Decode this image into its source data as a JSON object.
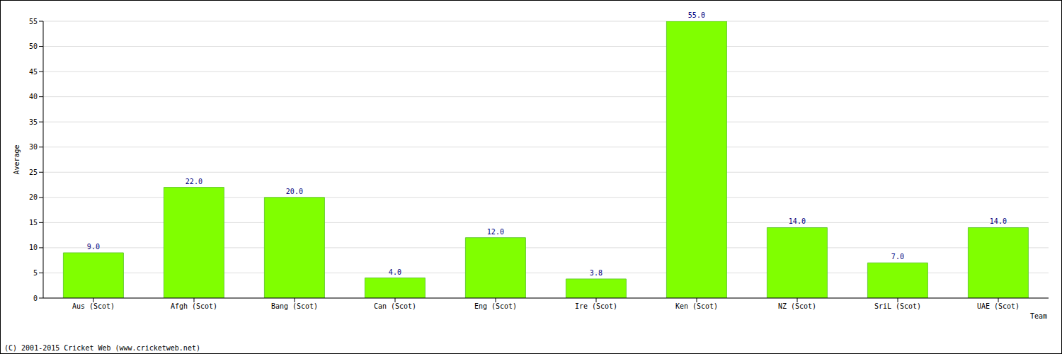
{
  "chart_data": {
    "type": "bar",
    "categories": [
      "Aus (Scot)",
      "Afgh (Scot)",
      "Bang (Scot)",
      "Can (Scot)",
      "Eng (Scot)",
      "Ire (Scot)",
      "Ken (Scot)",
      "NZ (Scot)",
      "SriL (Scot)",
      "UAE (Scot)"
    ],
    "values": [
      9,
      22,
      20,
      4,
      12,
      3.8,
      55,
      14,
      7,
      14
    ],
    "value_labels": [
      "9.0",
      "22.0",
      "20.0",
      "4.0",
      "12.0",
      "3.8",
      "55.0",
      "14.0",
      "7.0",
      "14.0"
    ],
    "data_labels": true,
    "color": "#80ff00",
    "x_label": "Team",
    "y_label": "Average",
    "ylim": [
      0,
      55
    ],
    "yticks": [
      0,
      5,
      10,
      15,
      20,
      25,
      30,
      35,
      40,
      45,
      50,
      55
    ],
    "grid": true,
    "annotations": [
      "(C) 2001-2015 Cricket Web (www.cricketweb.net)"
    ]
  }
}
